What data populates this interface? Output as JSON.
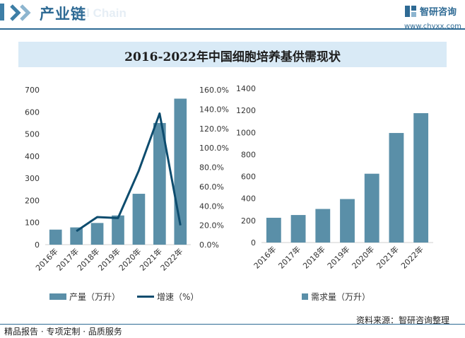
{
  "header": {
    "title": "产业链",
    "ghost_text": "ial Chain"
  },
  "brand": {
    "name": "智研咨询",
    "url": "www.chyxx.com"
  },
  "chart_title": "2016-2022年中国细胞培养基供需现状",
  "colors": {
    "bar": "#5a8fa8",
    "line": "#0d4c6e",
    "accent": "#2e6a94",
    "title_bg": "#d9eaf6"
  },
  "chart_data": [
    {
      "type": "bar",
      "name": "supply",
      "categories": [
        "2016年",
        "2017年",
        "2018年",
        "2019年",
        "2020年",
        "2021年",
        "2022年"
      ],
      "series": [
        {
          "name": "产量（万升）",
          "type": "bar",
          "axis": "left",
          "values": [
            68,
            78,
            98,
            132,
            230,
            550,
            660
          ]
        },
        {
          "name": "增速（%）",
          "type": "line",
          "axis": "right",
          "values": [
            null,
            14.0,
            28.5,
            27.5,
            76.5,
            135.5,
            20.0
          ]
        }
      ],
      "ylim": [
        0,
        700
      ],
      "y_ticks": [
        "700",
        "600",
        "500",
        "400",
        "300",
        "200",
        "100",
        "0"
      ],
      "y2lim": [
        0,
        160
      ],
      "y2_ticks": [
        "160.0%",
        "140.0%",
        "120.0%",
        "100.0%",
        "80.0%",
        "60.0%",
        "40.0%",
        "20.0%",
        "0.0%"
      ]
    },
    {
      "type": "bar",
      "name": "demand",
      "categories": [
        "2016年",
        "2017年",
        "2018年",
        "2019年",
        "2020年",
        "2021年",
        "2022年"
      ],
      "series": [
        {
          "name": "需求量（万升）",
          "type": "bar",
          "axis": "left",
          "values": [
            225,
            250,
            305,
            395,
            625,
            995,
            1175
          ]
        }
      ],
      "ylim": [
        0,
        1400
      ],
      "y_ticks": [
        "1400",
        "1200",
        "1000",
        "800",
        "600",
        "400",
        "200",
        "0"
      ]
    }
  ],
  "legend": {
    "production": "产量（万升）",
    "growth": "增速（%）",
    "demand": "需求量（万升）"
  },
  "source": "资料来源：智研咨询整理",
  "footer": "精品报告 · 专项定制 · 品质服务"
}
